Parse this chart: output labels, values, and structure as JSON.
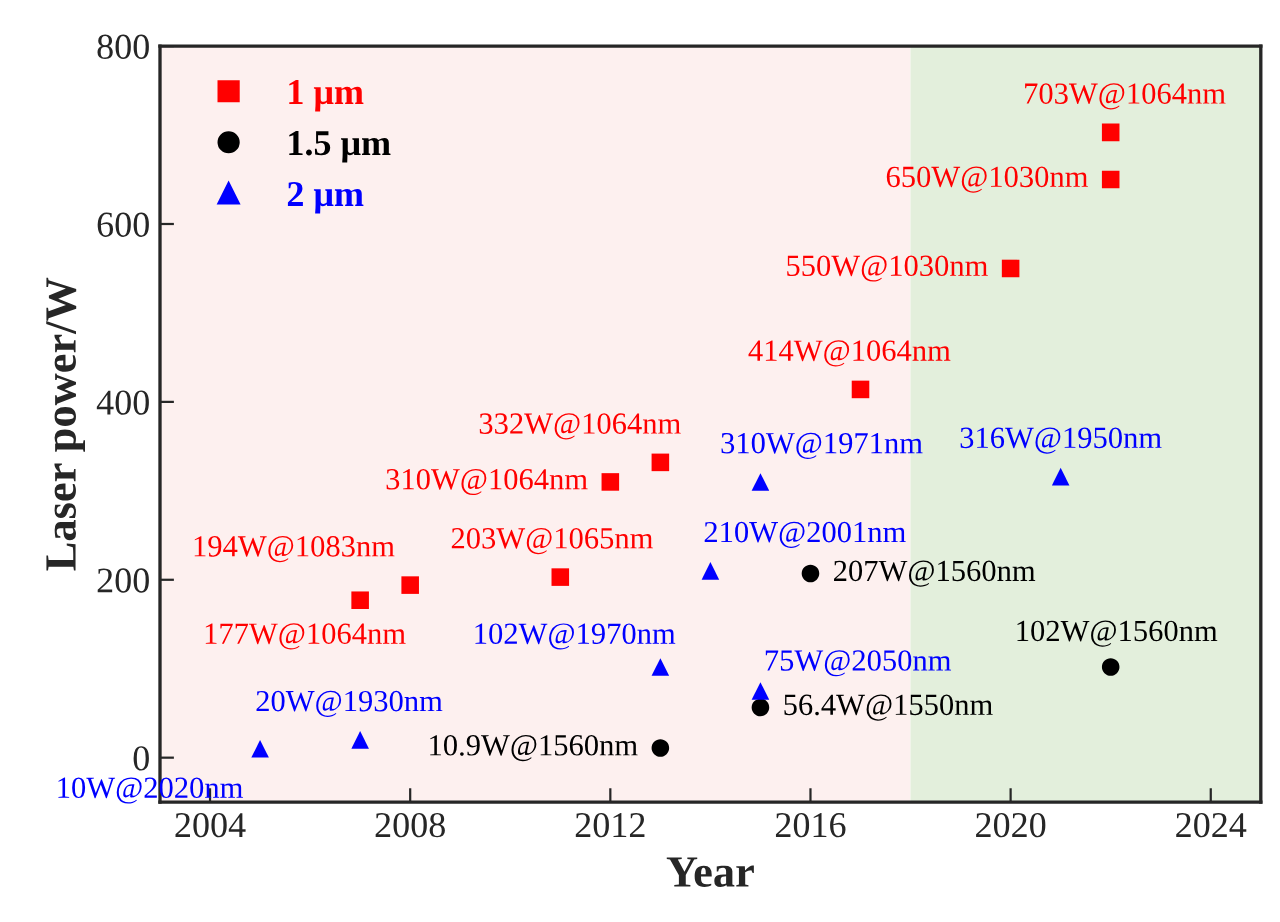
{
  "chart_data": {
    "type": "scatter",
    "xlabel": "Year",
    "ylabel": "Laser power/W",
    "xlim": [
      2003,
      2025
    ],
    "ylim": [
      -50,
      800
    ],
    "xticks": [
      2004,
      2008,
      2012,
      2016,
      2020,
      2024
    ],
    "yticks": [
      0,
      200,
      400,
      600,
      800
    ],
    "grid": false,
    "legend": "top left",
    "bands": [
      {
        "axis": "x",
        "from": 2003,
        "to": 2018,
        "color": "#fdf0ef"
      },
      {
        "axis": "x",
        "from": 2018,
        "to": 2025,
        "color": "#e3efdc"
      }
    ],
    "series": [
      {
        "name": "1 μm",
        "color": "#ff0000",
        "marker": "square",
        "x": [
          2007,
          2008,
          2011,
          2012,
          2013,
          2017,
          2020,
          2022,
          2022
        ],
        "values": [
          177,
          194,
          203,
          310,
          332,
          414,
          550,
          650,
          703
        ]
      },
      {
        "name": "1.5 μm",
        "color": "#000000",
        "marker": "circle",
        "x": [
          2013,
          2015,
          2016,
          2022
        ],
        "values": [
          10.9,
          56.4,
          207,
          102
        ]
      },
      {
        "name": "2 μm",
        "color": "#0000ff",
        "marker": "triangle",
        "x": [
          2005,
          2007,
          2013,
          2014,
          2015,
          2015,
          2021
        ],
        "values": [
          10,
          20,
          102,
          210,
          75,
          310,
          316
        ]
      }
    ],
    "annotations": [
      {
        "text": "177W@1064nm",
        "x": 2007,
        "y": 177
      },
      {
        "text": "194W@1083nm",
        "x": 2008,
        "y": 194
      },
      {
        "text": "203W@1065nm",
        "x": 2011,
        "y": 203
      },
      {
        "text": "310W@1064nm",
        "x": 2012,
        "y": 310
      },
      {
        "text": "332W@1064nm",
        "x": 2013,
        "y": 332
      },
      {
        "text": "414W@1064nm",
        "x": 2017,
        "y": 414
      },
      {
        "text": "550W@1030nm",
        "x": 2020,
        "y": 550
      },
      {
        "text": "650W@1030nm",
        "x": 2022,
        "y": 650
      },
      {
        "text": "703W@1064nm",
        "x": 2022,
        "y": 703
      },
      {
        "text": "10.9W@1560nm",
        "x": 2013,
        "y": 10.9
      },
      {
        "text": "56.4W@1550nm",
        "x": 2015,
        "y": 56.4
      },
      {
        "text": "207W@1560nm",
        "x": 2016,
        "y": 207
      },
      {
        "text": "102W@1560nm",
        "x": 2022,
        "y": 102
      },
      {
        "text": "10W@2020nm",
        "x": 2005,
        "y": 10
      },
      {
        "text": "20W@1930nm",
        "x": 2007,
        "y": 20
      },
      {
        "text": "102W@1970nm",
        "x": 2013,
        "y": 102
      },
      {
        "text": "210W@2001nm",
        "x": 2014,
        "y": 210
      },
      {
        "text": "75W@2050nm",
        "x": 2015,
        "y": 75
      },
      {
        "text": "310W@1971nm",
        "x": 2015,
        "y": 310
      },
      {
        "text": "316W@1950nm",
        "x": 2021,
        "y": 316
      }
    ]
  }
}
